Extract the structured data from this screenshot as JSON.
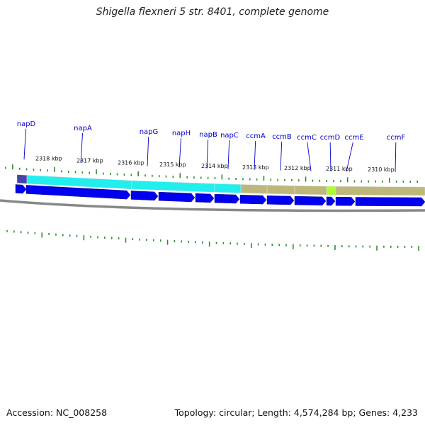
{
  "title": "Shigella flexneri 5 str. 8401, complete genome",
  "accession": "Accession: NC_008258",
  "summary": "Topology: circular; Length: 4,574,284 bp; Genes: 4,233",
  "colors": {
    "cds": "#0000ee",
    "cds_highlight": "#6666ff",
    "backbone": "#888888",
    "ticks": "#2e8b2e",
    "label": "#0000cc",
    "cyan_feature": "#22eeee",
    "khaki_feature": "#bdb87a",
    "lime_feature": "#aaff33",
    "purple_feature": "#4444aa"
  },
  "scale_labels": [
    "2318 kbp",
    "2317 kbp",
    "2316 kbp",
    "2315 kbp",
    "2314 kbp",
    "2313 kbp",
    "2312 kbp",
    "2311 kbp",
    "2310 kbp"
  ],
  "genes": [
    "napD",
    "napA",
    "napG",
    "napH",
    "napB",
    "napC",
    "ccmA",
    "ccmB",
    "ccmC",
    "ccmD",
    "ccmE",
    "ccmF"
  ]
}
